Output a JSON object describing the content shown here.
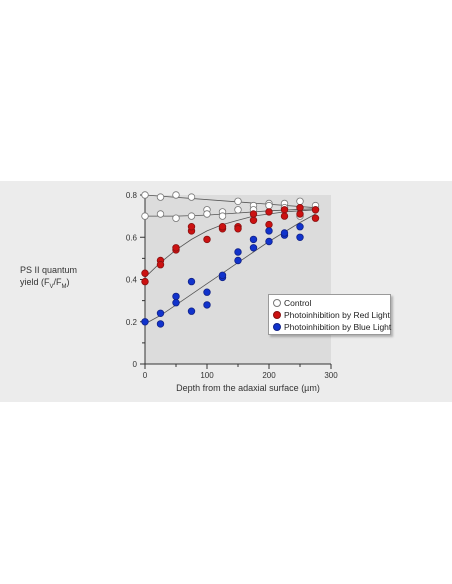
{
  "chart_data": {
    "type": "scatter",
    "xlabel": "Depth from the adaxial surface (µm)",
    "ylabel_line1": "PS II quantum",
    "ylabel_line2_prefix": "yield (F",
    "ylabel_sub1": "V",
    "ylabel_slash": "/F",
    "ylabel_sub2": "M",
    "ylabel_suffix": ")",
    "xlim": [
      0,
      300
    ],
    "ylim": [
      0,
      0.8
    ],
    "x_ticks": [
      "0",
      "100",
      "200",
      "300"
    ],
    "y_ticks": [
      "0",
      "0.2",
      "0.4",
      "0.6",
      "0.8"
    ],
    "legend_position": "right",
    "grid": false,
    "series": [
      {
        "name": "Control",
        "color": "#ffffff",
        "edge": "#777777",
        "points": [
          [
            0,
            0.8
          ],
          [
            25,
            0.79
          ],
          [
            50,
            0.8
          ],
          [
            75,
            0.79
          ],
          [
            100,
            0.73
          ],
          [
            125,
            0.72
          ],
          [
            150,
            0.77
          ],
          [
            175,
            0.75
          ],
          [
            200,
            0.76
          ],
          [
            225,
            0.76
          ],
          [
            250,
            0.77
          ],
          [
            275,
            0.75
          ],
          [
            0,
            0.7
          ],
          [
            25,
            0.71
          ],
          [
            50,
            0.69
          ],
          [
            75,
            0.7
          ],
          [
            100,
            0.71
          ],
          [
            125,
            0.7
          ],
          [
            150,
            0.73
          ],
          [
            175,
            0.73
          ],
          [
            200,
            0.75
          ],
          [
            225,
            0.74
          ],
          [
            250,
            0.7
          ],
          [
            275,
            0.73
          ]
        ]
      },
      {
        "name": "Photoinhibition by Red Light",
        "color": "#cc1111",
        "edge": "#881111",
        "points": [
          [
            0,
            0.43
          ],
          [
            0,
            0.39
          ],
          [
            25,
            0.49
          ],
          [
            25,
            0.47
          ],
          [
            50,
            0.54
          ],
          [
            50,
            0.55
          ],
          [
            75,
            0.63
          ],
          [
            75,
            0.65
          ],
          [
            100,
            0.59
          ],
          [
            125,
            0.64
          ],
          [
            125,
            0.65
          ],
          [
            150,
            0.65
          ],
          [
            150,
            0.64
          ],
          [
            175,
            0.68
          ],
          [
            175,
            0.71
          ],
          [
            200,
            0.72
          ],
          [
            200,
            0.66
          ],
          [
            225,
            0.73
          ],
          [
            225,
            0.7
          ],
          [
            250,
            0.74
          ],
          [
            250,
            0.71
          ],
          [
            275,
            0.73
          ],
          [
            275,
            0.69
          ]
        ]
      },
      {
        "name": "Photoinhibition by Blue Light",
        "color": "#1133cc",
        "edge": "#112288",
        "points": [
          [
            0,
            0.2
          ],
          [
            25,
            0.24
          ],
          [
            25,
            0.19
          ],
          [
            50,
            0.32
          ],
          [
            50,
            0.29
          ],
          [
            75,
            0.39
          ],
          [
            75,
            0.25
          ],
          [
            100,
            0.34
          ],
          [
            100,
            0.28
          ],
          [
            125,
            0.41
          ],
          [
            125,
            0.42
          ],
          [
            150,
            0.49
          ],
          [
            150,
            0.53
          ],
          [
            175,
            0.55
          ],
          [
            175,
            0.59
          ],
          [
            200,
            0.58
          ],
          [
            200,
            0.63
          ],
          [
            225,
            0.61
          ],
          [
            225,
            0.62
          ],
          [
            250,
            0.65
          ],
          [
            250,
            0.6
          ]
        ]
      }
    ],
    "fit_lines": [
      {
        "series": "Control",
        "points": [
          [
            0,
            0.8
          ],
          [
            275,
            0.74
          ]
        ]
      },
      {
        "series": "Control",
        "points": [
          [
            0,
            0.7
          ],
          [
            50,
            0.7
          ],
          [
            100,
            0.705
          ],
          [
            150,
            0.715
          ],
          [
            200,
            0.725
          ],
          [
            275,
            0.735
          ]
        ]
      },
      {
        "series": "Photoinhibition by Red Light",
        "points": [
          [
            0,
            0.41
          ],
          [
            25,
            0.48
          ],
          [
            50,
            0.54
          ],
          [
            75,
            0.59
          ],
          [
            100,
            0.63
          ],
          [
            125,
            0.66
          ],
          [
            150,
            0.68
          ],
          [
            175,
            0.7
          ],
          [
            200,
            0.71
          ],
          [
            225,
            0.72
          ],
          [
            250,
            0.725
          ],
          [
            275,
            0.73
          ]
        ]
      },
      {
        "series": "Photoinhibition by Blue Light",
        "points": [
          [
            0,
            0.19
          ],
          [
            25,
            0.23
          ],
          [
            50,
            0.28
          ],
          [
            75,
            0.33
          ],
          [
            100,
            0.38
          ],
          [
            125,
            0.43
          ],
          [
            150,
            0.48
          ],
          [
            175,
            0.53
          ],
          [
            200,
            0.58
          ],
          [
            225,
            0.625
          ],
          [
            250,
            0.67
          ],
          [
            275,
            0.71
          ]
        ]
      }
    ]
  }
}
